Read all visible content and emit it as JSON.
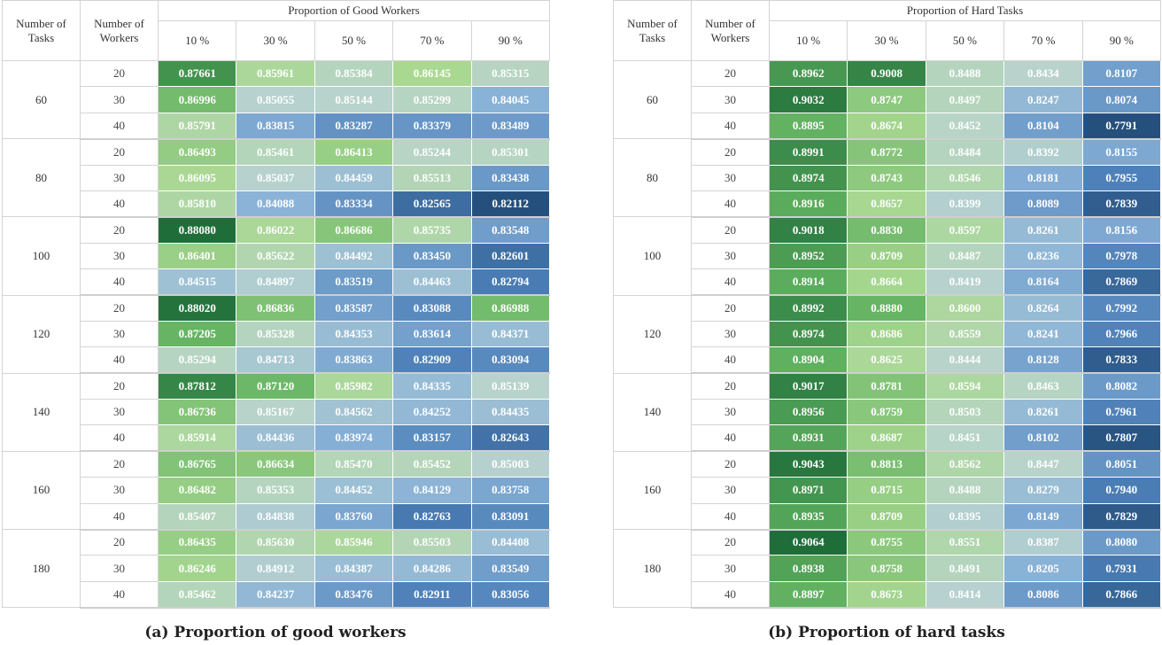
{
  "colors": {
    "scale_high": "#1f6e3a",
    "scale_mid": "#b9d3ce",
    "scale_low": "#25507d",
    "header_border": "#d4d4d4",
    "text_dark": "#333333",
    "value_text": "#ffffff"
  },
  "panel_a": {
    "caption": "(a) Proportion of good workers",
    "header": {
      "tasks": [
        "Number of",
        "Tasks"
      ],
      "workers": [
        "Number of",
        "Workers"
      ],
      "group": "Proportion of Good Workers",
      "columns": [
        "10 %",
        "30 %",
        "50 %",
        "70 %",
        "90 %"
      ]
    },
    "color_range": [
      0.8211,
      0.8808
    ],
    "groups": [
      {
        "tasks": "60",
        "rows": [
          {
            "workers": "20",
            "values": [
              "0.87661",
              "0.85961",
              "0.85384",
              "0.86145",
              "0.85315"
            ]
          },
          {
            "workers": "30",
            "values": [
              "0.86996",
              "0.85055",
              "0.85144",
              "0.85299",
              "0.84045"
            ]
          },
          {
            "workers": "40",
            "values": [
              "0.85791",
              "0.83815",
              "0.83287",
              "0.83379",
              "0.83489"
            ]
          }
        ]
      },
      {
        "tasks": "80",
        "rows": [
          {
            "workers": "20",
            "values": [
              "0.86493",
              "0.85461",
              "0.86413",
              "0.85244",
              "0.85301"
            ]
          },
          {
            "workers": "30",
            "values": [
              "0.86095",
              "0.85037",
              "0.84459",
              "0.85513",
              "0.83438"
            ]
          },
          {
            "workers": "40",
            "values": [
              "0.85810",
              "0.84088",
              "0.83334",
              "0.82565",
              "0.82112"
            ]
          }
        ]
      },
      {
        "tasks": "100",
        "rows": [
          {
            "workers": "20",
            "values": [
              "0.88080",
              "0.86022",
              "0.86686",
              "0.85735",
              "0.83548"
            ]
          },
          {
            "workers": "30",
            "values": [
              "0.86401",
              "0.85622",
              "0.84492",
              "0.83450",
              "0.82601"
            ]
          },
          {
            "workers": "40",
            "values": [
              "0.84515",
              "0.84897",
              "0.83519",
              "0.84463",
              "0.82794"
            ]
          }
        ]
      },
      {
        "tasks": "120",
        "rows": [
          {
            "workers": "20",
            "values": [
              "0.88020",
              "0.86836",
              "0.83587",
              "0.83088",
              "0.86988"
            ]
          },
          {
            "workers": "30",
            "values": [
              "0.87205",
              "0.85328",
              "0.84353",
              "0.83614",
              "0.84371"
            ]
          },
          {
            "workers": "40",
            "values": [
              "0.85294",
              "0.84713",
              "0.83863",
              "0.82909",
              "0.83094"
            ]
          }
        ]
      },
      {
        "tasks": "140",
        "rows": [
          {
            "workers": "20",
            "values": [
              "0.87812",
              "0.87120",
              "0.85982",
              "0.84335",
              "0.85139"
            ]
          },
          {
            "workers": "30",
            "values": [
              "0.86736",
              "0.85167",
              "0.84562",
              "0.84252",
              "0.84435"
            ]
          },
          {
            "workers": "40",
            "values": [
              "0.85914",
              "0.84436",
              "0.83974",
              "0.83157",
              "0.82643"
            ]
          }
        ]
      },
      {
        "tasks": "160",
        "rows": [
          {
            "workers": "20",
            "values": [
              "0.86765",
              "0.86634",
              "0.85470",
              "0.85452",
              "0.85003"
            ]
          },
          {
            "workers": "30",
            "values": [
              "0.86482",
              "0.85353",
              "0.84452",
              "0.84129",
              "0.83758"
            ]
          },
          {
            "workers": "40",
            "values": [
              "0.85407",
              "0.84838",
              "0.83760",
              "0.82763",
              "0.83091"
            ]
          }
        ]
      },
      {
        "tasks": "180",
        "rows": [
          {
            "workers": "20",
            "values": [
              "0.86435",
              "0.85630",
              "0.85946",
              "0.85503",
              "0.84408"
            ]
          },
          {
            "workers": "30",
            "values": [
              "0.86246",
              "0.84912",
              "0.84387",
              "0.84286",
              "0.83549"
            ]
          },
          {
            "workers": "40",
            "values": [
              "0.85462",
              "0.84237",
              "0.83476",
              "0.82911",
              "0.83056"
            ]
          }
        ]
      }
    ]
  },
  "panel_b": {
    "caption": "(b) Proportion of hard tasks",
    "header": {
      "tasks": [
        "Number of",
        "Tasks"
      ],
      "workers": [
        "Number of",
        "Workers"
      ],
      "group": "Proportion of Hard Tasks",
      "columns": [
        "10 %",
        "30 %",
        "50 %",
        "70 %",
        "90 %"
      ]
    },
    "color_range": [
      0.7791,
      0.9064
    ],
    "groups": [
      {
        "tasks": "60",
        "rows": [
          {
            "workers": "20",
            "values": [
              "0.8962",
              "0.9008",
              "0.8488",
              "0.8434",
              "0.8107"
            ]
          },
          {
            "workers": "30",
            "values": [
              "0.9032",
              "0.8747",
              "0.8497",
              "0.8247",
              "0.8074"
            ]
          },
          {
            "workers": "40",
            "values": [
              "0.8895",
              "0.8674",
              "0.8452",
              "0.8104",
              "0.7791"
            ]
          }
        ]
      },
      {
        "tasks": "80",
        "rows": [
          {
            "workers": "20",
            "values": [
              "0.8991",
              "0.8772",
              "0.8484",
              "0.8392",
              "0.8155"
            ]
          },
          {
            "workers": "30",
            "values": [
              "0.8974",
              "0.8743",
              "0.8546",
              "0.8181",
              "0.7955"
            ]
          },
          {
            "workers": "40",
            "values": [
              "0.8916",
              "0.8657",
              "0.8399",
              "0.8089",
              "0.7839"
            ]
          }
        ]
      },
      {
        "tasks": "100",
        "rows": [
          {
            "workers": "20",
            "values": [
              "0.9018",
              "0.8830",
              "0.8597",
              "0.8261",
              "0.8156"
            ]
          },
          {
            "workers": "30",
            "values": [
              "0.8952",
              "0.8709",
              "0.8487",
              "0.8236",
              "0.7978"
            ]
          },
          {
            "workers": "40",
            "values": [
              "0.8914",
              "0.8664",
              "0.8419",
              "0.8164",
              "0.7869"
            ]
          }
        ]
      },
      {
        "tasks": "120",
        "rows": [
          {
            "workers": "20",
            "values": [
              "0.8992",
              "0.8880",
              "0.8600",
              "0.8264",
              "0.7992"
            ]
          },
          {
            "workers": "30",
            "values": [
              "0.8974",
              "0.8686",
              "0.8559",
              "0.8241",
              "0.7966"
            ]
          },
          {
            "workers": "40",
            "values": [
              "0.8904",
              "0.8625",
              "0.8444",
              "0.8128",
              "0.7833"
            ]
          }
        ]
      },
      {
        "tasks": "140",
        "rows": [
          {
            "workers": "20",
            "values": [
              "0.9017",
              "0.8781",
              "0.8594",
              "0.8463",
              "0.8082"
            ]
          },
          {
            "workers": "30",
            "values": [
              "0.8956",
              "0.8759",
              "0.8503",
              "0.8261",
              "0.7961"
            ]
          },
          {
            "workers": "40",
            "values": [
              "0.8931",
              "0.8687",
              "0.8451",
              "0.8102",
              "0.7807"
            ]
          }
        ]
      },
      {
        "tasks": "160",
        "rows": [
          {
            "workers": "20",
            "values": [
              "0.9043",
              "0.8813",
              "0.8562",
              "0.8447",
              "0.8051"
            ]
          },
          {
            "workers": "30",
            "values": [
              "0.8971",
              "0.8715",
              "0.8488",
              "0.8279",
              "0.7940"
            ]
          },
          {
            "workers": "40",
            "values": [
              "0.8935",
              "0.8709",
              "0.8395",
              "0.8149",
              "0.7829"
            ]
          }
        ]
      },
      {
        "tasks": "180",
        "rows": [
          {
            "workers": "20",
            "values": [
              "0.9064",
              "0.8755",
              "0.8551",
              "0.8387",
              "0.8080"
            ]
          },
          {
            "workers": "30",
            "values": [
              "0.8938",
              "0.8758",
              "0.8491",
              "0.8205",
              "0.7931"
            ]
          },
          {
            "workers": "40",
            "values": [
              "0.8897",
              "0.8673",
              "0.8414",
              "0.8086",
              "0.7866"
            ]
          }
        ]
      }
    ]
  }
}
